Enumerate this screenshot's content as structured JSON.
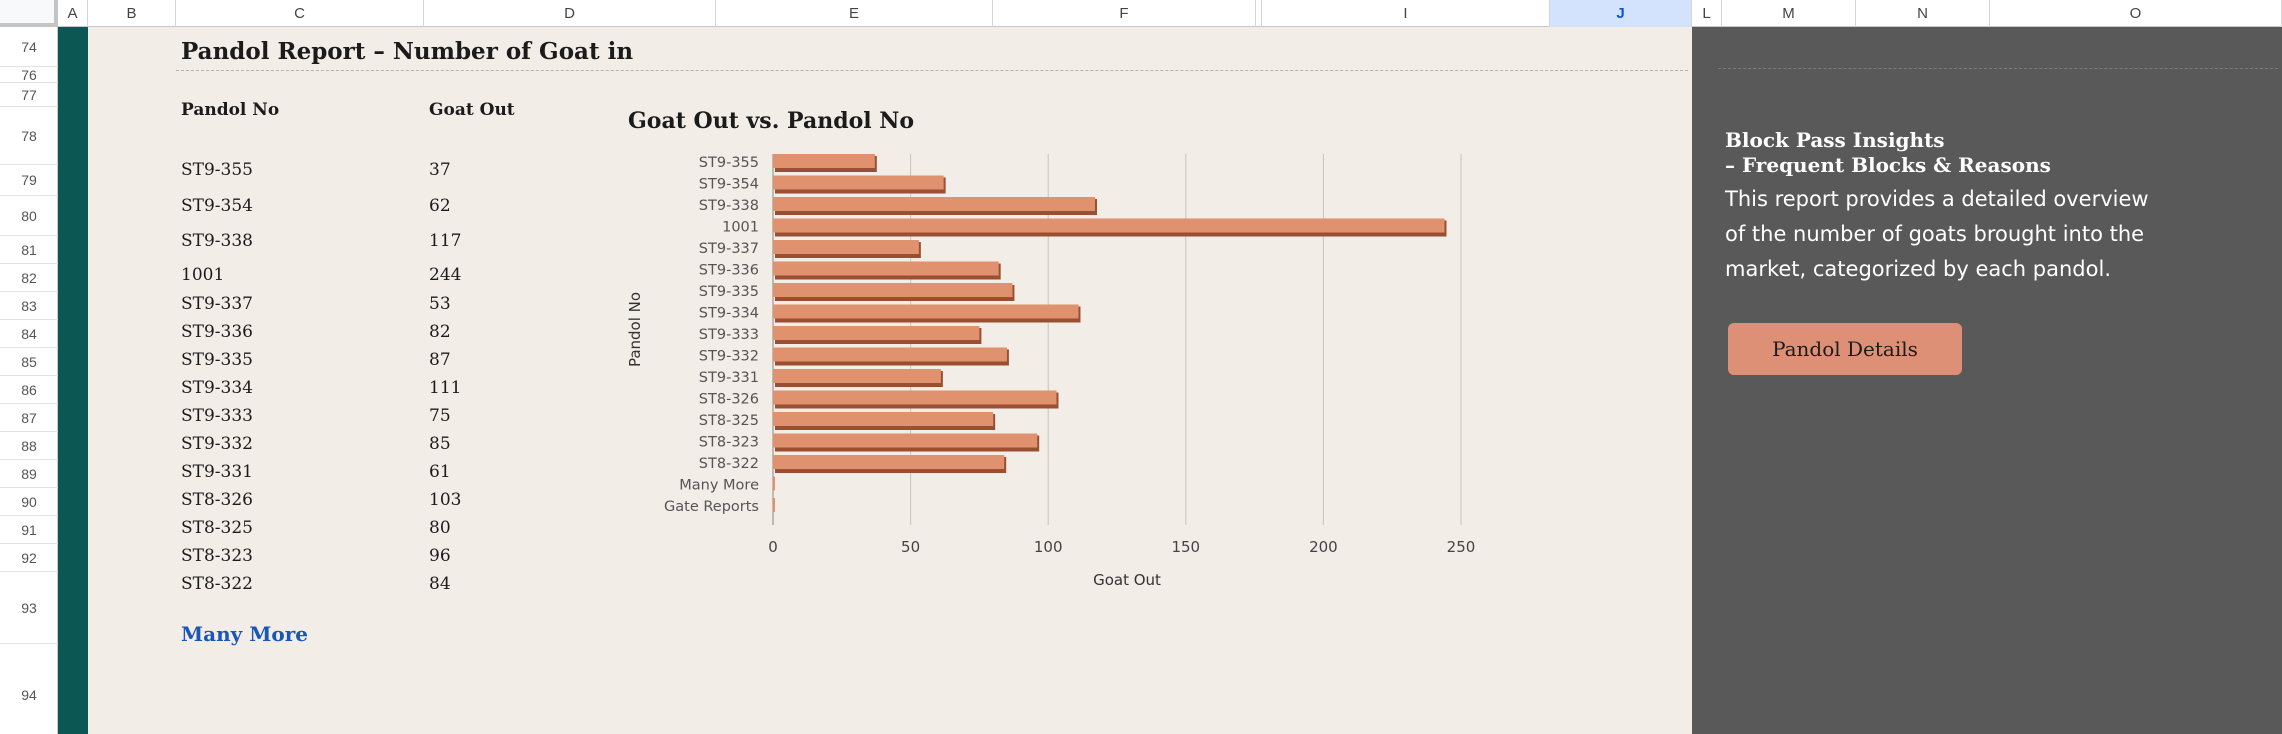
{
  "columns": [
    {
      "label": "",
      "w": 58
    },
    {
      "label": "A",
      "w": 30
    },
    {
      "label": "B",
      "w": 88
    },
    {
      "label": "C",
      "w": 248
    },
    {
      "label": "D",
      "w": 292
    },
    {
      "label": "E",
      "w": 277
    },
    {
      "label": "F",
      "w": 263
    },
    {
      "label": "",
      "w": 6
    },
    {
      "label": "I",
      "w": 288
    },
    {
      "label": "J",
      "w": 142,
      "selected": true
    },
    {
      "label": "L",
      "w": 30
    },
    {
      "label": "M",
      "w": 134
    },
    {
      "label": "N",
      "w": 134
    },
    {
      "label": "O",
      "w": 292
    }
  ],
  "rows": [
    "74",
    "76",
    "77",
    "78",
    "79",
    "80",
    "81",
    "82",
    "83",
    "84",
    "85",
    "86",
    "87",
    "88",
    "89",
    "90",
    "91",
    "92",
    "93",
    "94"
  ],
  "report_title": "Pandol Report – Number of Goat in",
  "table": {
    "header_pandol": "Pandol No",
    "header_goat": "Goat Out",
    "rows": [
      {
        "pandol": "ST9-355",
        "goat": "37"
      },
      {
        "pandol": "ST9-354",
        "goat": "62"
      },
      {
        "pandol": "ST9-338",
        "goat": "117"
      },
      {
        "pandol": "1001",
        "goat": "244"
      },
      {
        "pandol": "ST9-337",
        "goat": "53"
      },
      {
        "pandol": "ST9-336",
        "goat": "82"
      },
      {
        "pandol": "ST9-335",
        "goat": "87"
      },
      {
        "pandol": "ST9-334",
        "goat": "111"
      },
      {
        "pandol": "ST9-333",
        "goat": "75"
      },
      {
        "pandol": "ST9-332",
        "goat": "85"
      },
      {
        "pandol": "ST9-331",
        "goat": "61"
      },
      {
        "pandol": "ST8-326",
        "goat": "103"
      },
      {
        "pandol": "ST8-325",
        "goat": "80"
      },
      {
        "pandol": "ST8-323",
        "goat": "96"
      },
      {
        "pandol": "ST8-322",
        "goat": "84"
      }
    ],
    "many_more": "Many More"
  },
  "chart_data": {
    "type": "bar",
    "orientation": "horizontal",
    "title": "Goat Out vs. Pandol No",
    "xlabel": "Goat Out",
    "ylabel": "Pandol No",
    "categories": [
      "ST9-355",
      "ST9-354",
      "ST9-338",
      "1001",
      "ST9-337",
      "ST9-336",
      "ST9-335",
      "ST9-334",
      "ST9-333",
      "ST9-332",
      "ST9-331",
      "ST8-326",
      "ST8-325",
      "ST8-323",
      "ST8-322",
      "Many More",
      "Gate Reports"
    ],
    "values": [
      37,
      62,
      117,
      244,
      53,
      82,
      87,
      111,
      75,
      85,
      61,
      103,
      80,
      96,
      84,
      0,
      0
    ],
    "xlim": [
      0,
      250
    ],
    "xticks": [
      0,
      50,
      100,
      150,
      200,
      250
    ],
    "grid": "vertical",
    "bar_color": "#e0916d",
    "bar_shadow_color": "#9a4f33"
  },
  "insights": {
    "title": "Block Pass Insights\n– Frequent Blocks & Reasons",
    "description": "This report provides a detailed overview of the number of goats brought into the market, categorized by each pandol.",
    "button_label": "Pandol Details"
  }
}
